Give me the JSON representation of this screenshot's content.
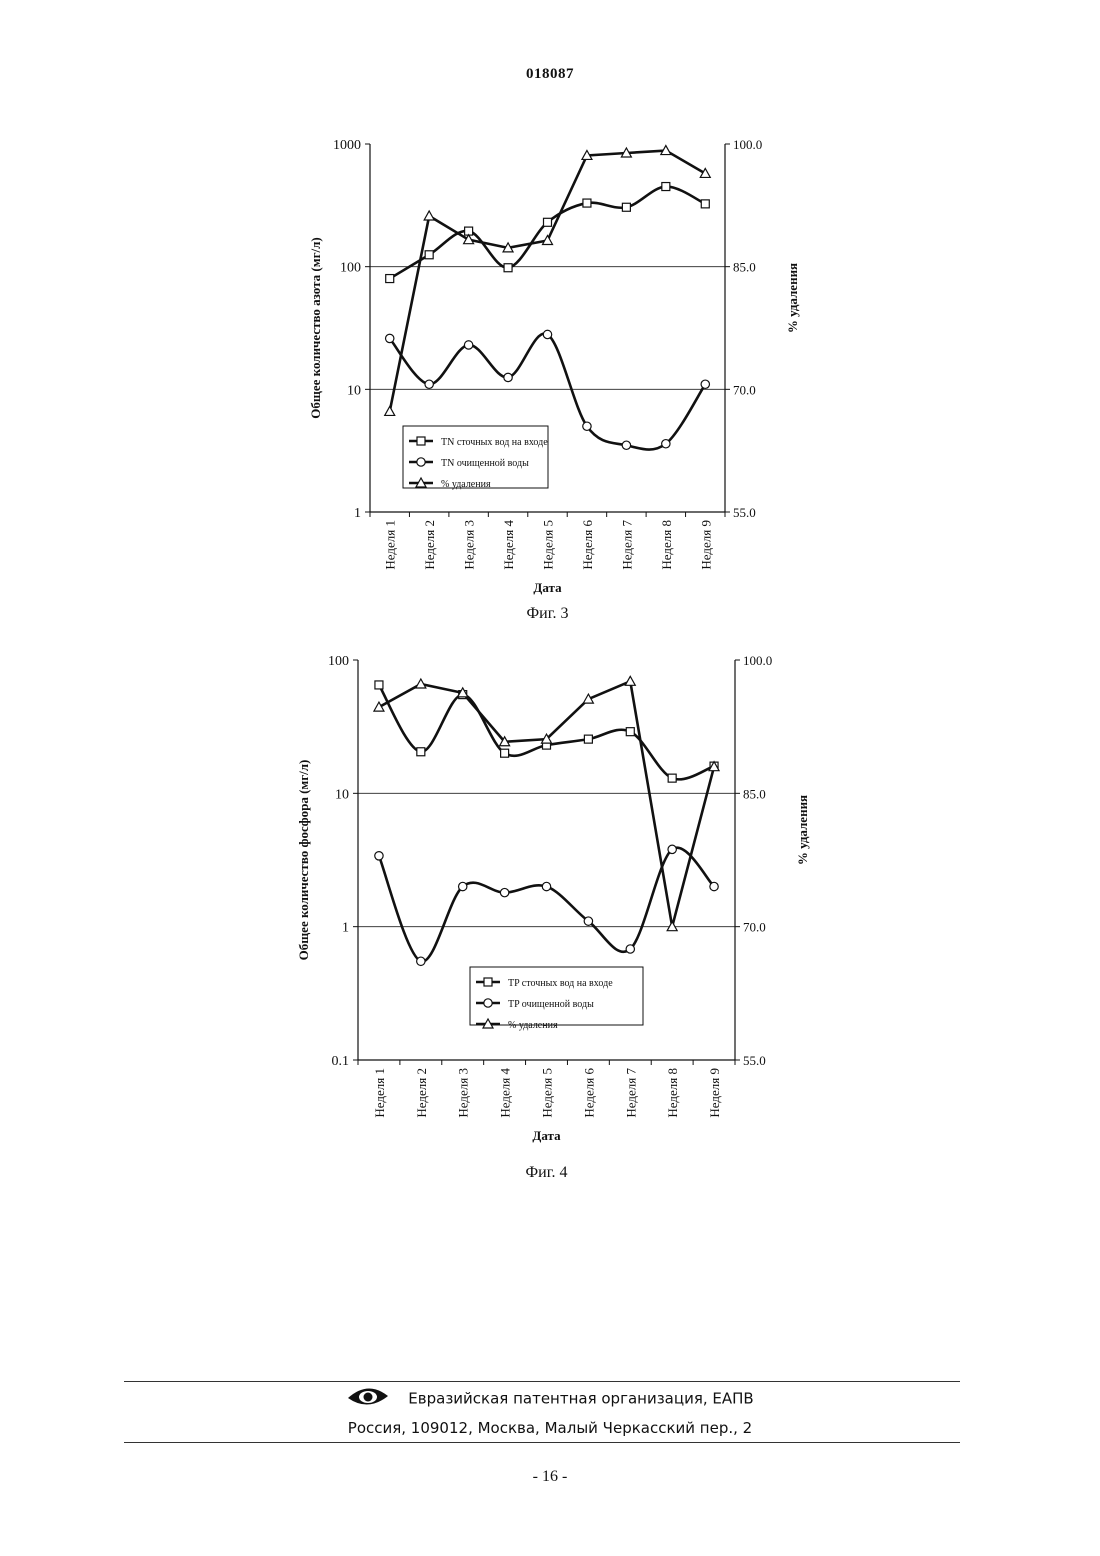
{
  "document_number": "018087",
  "footer": {
    "organization": "Евразийская патентная организация, ЕАПВ",
    "address": "Россия, 109012, Москва, Малый Черкасский пер., 2",
    "page": "- 16 -",
    "logo_icon": "eapo-eye-logo-icon"
  },
  "chart_data": [
    {
      "type": "line",
      "caption": "Фиг. 3",
      "categories": [
        "Неделя 1",
        "Неделя 2",
        "Неделя 3",
        "Неделя 4",
        "Неделя 5",
        "Неделя 6",
        "Неделя 7",
        "Неделя 8",
        "Неделя 9"
      ],
      "xlabel": "Дата",
      "ylabel": "Общее количество азота (мг/л)",
      "y2label": "% удаления",
      "y_scale": "log",
      "ylim": [
        1,
        1000
      ],
      "y_ticks": [
        "1",
        "10",
        "100",
        "1000"
      ],
      "y2lim": [
        55,
        100
      ],
      "y2_ticks": [
        "55.0",
        "70.0",
        "85.0",
        "100.0"
      ],
      "gridlines": [
        10,
        100
      ],
      "legend_position": "bottom-center",
      "series": [
        {
          "name": "TN сточных вод на входе",
          "marker": "square",
          "axis": "left",
          "values": [
            80,
            125,
            195,
            98,
            230,
            330,
            305,
            450,
            325
          ]
        },
        {
          "name": "TN очищенной воды",
          "marker": "circle",
          "axis": "left",
          "values": [
            26,
            11,
            23,
            12.5,
            28,
            5,
            3.5,
            3.6,
            11
          ]
        },
        {
          "name": "% удаления",
          "marker": "triangle",
          "axis": "right",
          "values": [
            67.3,
            91.2,
            88.3,
            87.3,
            88.2,
            98.6,
            98.9,
            99.2,
            96.4
          ]
        }
      ]
    },
    {
      "type": "line",
      "caption": "Фиг. 4",
      "categories": [
        "Неделя 1",
        "Неделя 2",
        "Неделя 3",
        "Неделя 4",
        "Неделя 5",
        "Неделя 6",
        "Неделя 7",
        "Неделя 8",
        "Неделя 9"
      ],
      "xlabel": "Дата",
      "ylabel": "Общее количество фосфора (мг/л)",
      "y2label": "% удаления",
      "y_scale": "log",
      "ylim": [
        0.1,
        100
      ],
      "y_ticks": [
        "0.1",
        "1",
        "10",
        "100"
      ],
      "y2lim": [
        55,
        100
      ],
      "y2_ticks": [
        "55.0",
        "70.0",
        "85.0",
        "100.0"
      ],
      "gridlines": [
        1,
        10
      ],
      "legend_position": "bottom-center",
      "series": [
        {
          "name": "TP сточных вод на входе",
          "marker": "square",
          "axis": "left",
          "values": [
            65,
            20.5,
            55,
            20,
            23,
            25.5,
            29,
            13,
            16
          ]
        },
        {
          "name": "TP очищенной воды",
          "marker": "circle",
          "axis": "left",
          "values": [
            3.4,
            0.55,
            2.0,
            1.8,
            2.0,
            1.1,
            0.68,
            3.8,
            2.0
          ]
        },
        {
          "name": "% удаления",
          "marker": "triangle",
          "axis": "right",
          "values": [
            94.7,
            97.3,
            96.3,
            90.8,
            91.1,
            95.6,
            97.6,
            70.0,
            88.0
          ]
        }
      ]
    }
  ]
}
